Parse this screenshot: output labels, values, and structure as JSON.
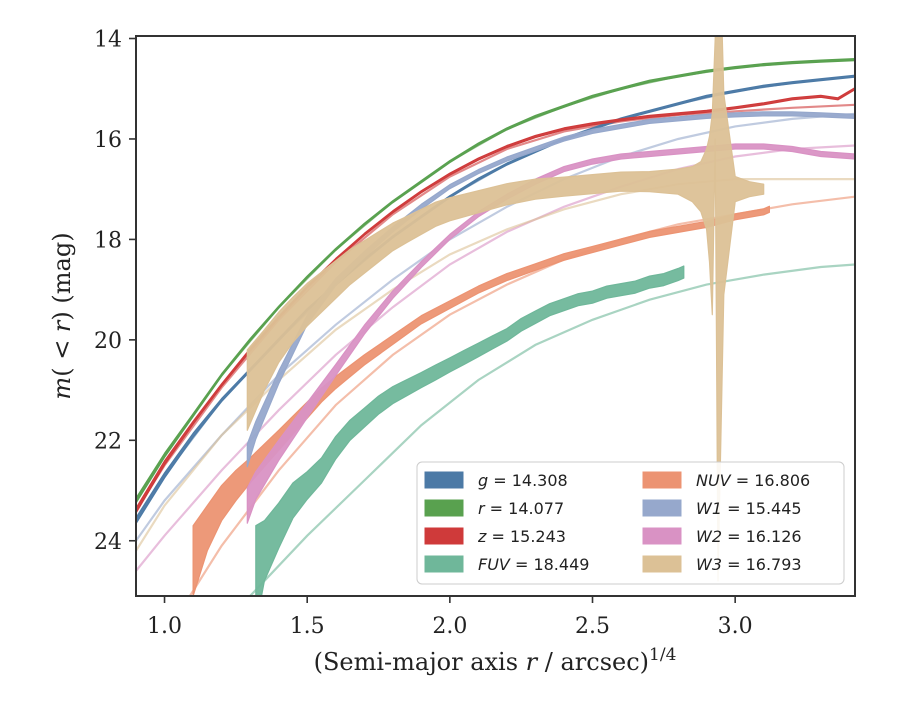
{
  "chart_data": {
    "type": "line",
    "xlabel": "(Semi-major axis r / arcsec)^{1/4}",
    "xlabel_parts": {
      "pre": "(Semi-major axis ",
      "var": "r",
      "post": " / arcsec)",
      "sup": "1/4"
    },
    "ylabel": "m(<r) (mag)",
    "ylabel_parts": {
      "m": "m",
      "mid": "( < ",
      "r": "r",
      "post": ") (mag)"
    },
    "xlim": [
      0.9,
      3.42
    ],
    "ylim": [
      25.1,
      13.95
    ],
    "y_inverted": true,
    "xticks": [
      1.0,
      1.5,
      2.0,
      2.5,
      3.0
    ],
    "xtick_labels": [
      "1.0",
      "1.5",
      "2.0",
      "2.5",
      "3.0"
    ],
    "yticks": [
      14,
      16,
      18,
      20,
      22,
      24
    ],
    "ytick_labels": [
      "14",
      "16",
      "18",
      "20",
      "22",
      "24"
    ],
    "grid": false,
    "legend_position": "lower-right",
    "series": [
      {
        "name": "g = 14.308",
        "sym": "g",
        "val": "= 14.308",
        "color": "#4c7aa6",
        "observed": {
          "x": [
            0.9,
            1.0,
            1.1,
            1.2,
            1.3,
            1.4,
            1.5,
            1.6,
            1.7,
            1.8,
            1.9,
            2.0,
            2.1,
            2.2,
            2.3,
            2.4,
            2.5,
            2.6,
            2.7,
            2.8,
            2.9,
            3.0,
            3.1,
            3.2,
            3.3,
            3.42
          ],
          "y": [
            23.6,
            22.7,
            21.9,
            21.2,
            20.6,
            20.0,
            19.4,
            18.9,
            18.4,
            17.95,
            17.55,
            17.15,
            16.8,
            16.5,
            16.25,
            16.0,
            15.8,
            15.6,
            15.45,
            15.3,
            15.15,
            15.05,
            14.95,
            14.88,
            14.82,
            14.75
          ],
          "width": [
            0.12,
            0.1,
            0.08,
            0.06,
            0.05,
            0.05,
            0.04,
            0.04,
            0.04,
            0.04,
            0.04,
            0.04,
            0.04,
            0.04,
            0.04,
            0.04,
            0.04,
            0.04,
            0.04,
            0.04,
            0.04,
            0.04,
            0.04,
            0.04,
            0.04,
            0.04
          ]
        },
        "model": {
          "x": [
            0.9,
            1.0,
            1.2,
            1.4,
            1.6,
            1.8,
            2.0,
            2.2,
            2.4,
            2.6,
            2.8,
            3.0,
            3.2,
            3.42
          ],
          "y": [
            23.6,
            22.7,
            21.2,
            20.0,
            18.9,
            17.95,
            17.15,
            16.5,
            16.0,
            15.6,
            15.3,
            15.05,
            14.88,
            14.75
          ]
        }
      },
      {
        "name": "r = 14.077",
        "sym": "r",
        "val": "= 14.077",
        "color": "#59a14f",
        "observed": {
          "x": [
            0.9,
            1.0,
            1.1,
            1.2,
            1.3,
            1.4,
            1.5,
            1.6,
            1.7,
            1.8,
            1.9,
            2.0,
            2.1,
            2.2,
            2.3,
            2.4,
            2.5,
            2.6,
            2.7,
            2.8,
            2.9,
            3.0,
            3.1,
            3.2,
            3.3,
            3.42
          ],
          "y": [
            23.2,
            22.3,
            21.5,
            20.7,
            20.0,
            19.35,
            18.75,
            18.2,
            17.7,
            17.25,
            16.85,
            16.45,
            16.1,
            15.8,
            15.55,
            15.35,
            15.15,
            15.0,
            14.85,
            14.75,
            14.65,
            14.58,
            14.52,
            14.48,
            14.45,
            14.42
          ],
          "width": [
            0.1,
            0.08,
            0.06,
            0.05,
            0.05,
            0.04,
            0.04,
            0.04,
            0.04,
            0.04,
            0.04,
            0.04,
            0.04,
            0.04,
            0.04,
            0.04,
            0.04,
            0.04,
            0.04,
            0.04,
            0.04,
            0.04,
            0.04,
            0.04,
            0.04,
            0.04
          ]
        },
        "model": {
          "x": [
            0.9,
            1.0,
            1.2,
            1.4,
            1.6,
            1.8,
            2.0,
            2.2,
            2.4,
            2.6,
            2.8,
            3.0,
            3.2,
            3.42
          ],
          "y": [
            23.2,
            22.3,
            20.7,
            19.35,
            18.2,
            17.25,
            16.45,
            15.8,
            15.35,
            15.0,
            14.75,
            14.58,
            14.48,
            14.42
          ]
        }
      },
      {
        "name": "z = 15.243",
        "sym": "z",
        "val": "= 15.243",
        "color": "#cf3a3a",
        "observed": {
          "x": [
            0.9,
            1.0,
            1.1,
            1.2,
            1.3,
            1.4,
            1.5,
            1.6,
            1.7,
            1.8,
            1.9,
            2.0,
            2.1,
            2.2,
            2.3,
            2.4,
            2.5,
            2.6,
            2.7,
            2.8,
            2.9,
            3.0,
            3.1,
            3.2,
            3.3,
            3.36,
            3.42
          ],
          "y": [
            23.4,
            22.45,
            21.65,
            20.9,
            20.2,
            19.55,
            18.95,
            18.4,
            17.9,
            17.45,
            17.05,
            16.7,
            16.4,
            16.15,
            15.95,
            15.8,
            15.7,
            15.62,
            15.55,
            15.5,
            15.45,
            15.38,
            15.3,
            15.2,
            15.15,
            15.2,
            15.0
          ],
          "width": [
            0.1,
            0.08,
            0.06,
            0.05,
            0.05,
            0.04,
            0.04,
            0.04,
            0.04,
            0.04,
            0.04,
            0.04,
            0.04,
            0.04,
            0.04,
            0.04,
            0.04,
            0.04,
            0.04,
            0.04,
            0.04,
            0.04,
            0.04,
            0.04,
            0.04,
            0.04,
            0.04
          ]
        },
        "model": {
          "x": [
            0.9,
            1.0,
            1.2,
            1.4,
            1.6,
            1.8,
            2.0,
            2.2,
            2.4,
            2.6,
            2.8,
            3.0,
            3.2,
            3.42
          ],
          "y": [
            23.4,
            22.5,
            20.95,
            19.6,
            18.45,
            17.5,
            16.75,
            16.2,
            15.85,
            15.65,
            15.52,
            15.45,
            15.38,
            15.32
          ]
        }
      },
      {
        "name": "FUV = 18.449",
        "sym": "FUV",
        "val": "= 18.449",
        "color": "#6fb79a",
        "observed": {
          "x": [
            1.32,
            1.35,
            1.4,
            1.45,
            1.5,
            1.55,
            1.6,
            1.65,
            1.7,
            1.75,
            1.8,
            1.85,
            1.9,
            1.95,
            2.0,
            2.05,
            2.1,
            2.15,
            2.2,
            2.25,
            2.3,
            2.35,
            2.4,
            2.45,
            2.5,
            2.55,
            2.6,
            2.65,
            2.7,
            2.75,
            2.8,
            2.82
          ],
          "y": [
            24.7,
            24.2,
            23.7,
            23.2,
            22.9,
            22.6,
            22.15,
            21.8,
            21.55,
            21.3,
            21.1,
            20.95,
            20.8,
            20.65,
            20.5,
            20.35,
            20.2,
            20.05,
            19.9,
            19.7,
            19.55,
            19.4,
            19.3,
            19.2,
            19.15,
            19.05,
            19.0,
            18.95,
            18.85,
            18.8,
            18.7,
            18.65
          ],
          "width": [
            2.0,
            1.2,
            0.9,
            0.7,
            0.55,
            0.5,
            0.45,
            0.4,
            0.38,
            0.36,
            0.34,
            0.32,
            0.3,
            0.3,
            0.28,
            0.28,
            0.27,
            0.26,
            0.25,
            0.25,
            0.25,
            0.24,
            0.24,
            0.24,
            0.24,
            0.24,
            0.24,
            0.24,
            0.24,
            0.24,
            0.24,
            0.24
          ]
        },
        "model": {
          "x": [
            1.1,
            1.3,
            1.5,
            1.7,
            1.9,
            2.1,
            2.3,
            2.5,
            2.7,
            2.9,
            3.1,
            3.3,
            3.42
          ],
          "y": [
            26.5,
            25.1,
            23.9,
            22.8,
            21.7,
            20.8,
            20.1,
            19.6,
            19.2,
            18.9,
            18.7,
            18.55,
            18.5
          ]
        }
      },
      {
        "name": "NUV = 16.806",
        "sym": "NUV",
        "val": "= 16.806",
        "color": "#ec9372",
        "observed": {
          "x": [
            1.1,
            1.15,
            1.2,
            1.25,
            1.3,
            1.35,
            1.4,
            1.45,
            1.5,
            1.55,
            1.6,
            1.7,
            1.8,
            1.9,
            2.0,
            2.1,
            2.2,
            2.3,
            2.4,
            2.5,
            2.6,
            2.7,
            2.8,
            2.9,
            3.0,
            3.1,
            3.12
          ],
          "y": [
            24.4,
            23.75,
            23.25,
            22.9,
            22.6,
            22.3,
            22.0,
            21.7,
            21.4,
            21.1,
            20.85,
            20.4,
            20.0,
            19.6,
            19.3,
            19.0,
            18.75,
            18.55,
            18.35,
            18.2,
            18.05,
            17.9,
            17.8,
            17.7,
            17.55,
            17.45,
            17.4
          ],
          "width": [
            1.4,
            0.9,
            0.7,
            0.6,
            0.5,
            0.45,
            0.4,
            0.36,
            0.32,
            0.28,
            0.24,
            0.2,
            0.18,
            0.16,
            0.15,
            0.14,
            0.14,
            0.13,
            0.13,
            0.12,
            0.12,
            0.12,
            0.12,
            0.12,
            0.12,
            0.12,
            0.12
          ]
        },
        "model": {
          "x": [
            1.0,
            1.2,
            1.4,
            1.6,
            1.8,
            2.0,
            2.2,
            2.4,
            2.6,
            2.8,
            3.0,
            3.2,
            3.42
          ],
          "y": [
            25.9,
            24.1,
            22.6,
            21.3,
            20.3,
            19.5,
            18.9,
            18.4,
            18.0,
            17.7,
            17.5,
            17.3,
            17.15
          ]
        }
      },
      {
        "name": "W1 = 15.445",
        "sym": "W1",
        "val": "= 15.445",
        "color": "#96a8cc",
        "observed": {
          "x": [
            1.29,
            1.32,
            1.4,
            1.5,
            1.6,
            1.7,
            1.8,
            1.9,
            2.0,
            2.1,
            2.2,
            2.3,
            2.4,
            2.5,
            2.6,
            2.7,
            2.8,
            2.9,
            3.0,
            3.1,
            3.2,
            3.3,
            3.42
          ],
          "y": [
            22.3,
            21.8,
            20.75,
            19.6,
            18.85,
            18.3,
            17.8,
            17.35,
            16.95,
            16.65,
            16.4,
            16.2,
            16.0,
            15.85,
            15.75,
            15.65,
            15.6,
            15.55,
            15.52,
            15.5,
            15.5,
            15.52,
            15.55
          ],
          "width": [
            0.45,
            0.35,
            0.25,
            0.18,
            0.14,
            0.12,
            0.1,
            0.1,
            0.08,
            0.08,
            0.08,
            0.08,
            0.08,
            0.08,
            0.08,
            0.08,
            0.08,
            0.08,
            0.08,
            0.08,
            0.08,
            0.08,
            0.08
          ]
        },
        "model": {
          "x": [
            0.9,
            1.0,
            1.2,
            1.4,
            1.6,
            1.8,
            2.0,
            2.2,
            2.4,
            2.6,
            2.8,
            3.0,
            3.2,
            3.42
          ],
          "y": [
            24.0,
            23.2,
            21.9,
            20.7,
            19.7,
            18.8,
            18.0,
            17.35,
            16.8,
            16.35,
            16.0,
            15.75,
            15.6,
            15.5
          ]
        }
      },
      {
        "name": "W2 = 16.126",
        "sym": "W2",
        "val": "= 16.126",
        "color": "#d992c4",
        "observed": {
          "x": [
            1.29,
            1.32,
            1.4,
            1.5,
            1.6,
            1.7,
            1.8,
            1.9,
            2.0,
            2.1,
            2.2,
            2.3,
            2.4,
            2.5,
            2.6,
            2.7,
            2.8,
            2.9,
            3.0,
            3.1,
            3.2,
            3.3,
            3.42
          ],
          "y": [
            23.3,
            22.9,
            22.2,
            21.4,
            20.6,
            19.8,
            19.1,
            18.5,
            17.95,
            17.5,
            17.15,
            16.85,
            16.6,
            16.45,
            16.35,
            16.3,
            16.25,
            16.2,
            16.15,
            16.15,
            16.2,
            16.3,
            16.35
          ],
          "width": [
            0.7,
            0.55,
            0.4,
            0.3,
            0.22,
            0.18,
            0.15,
            0.12,
            0.1,
            0.1,
            0.1,
            0.1,
            0.1,
            0.1,
            0.1,
            0.1,
            0.1,
            0.1,
            0.1,
            0.1,
            0.1,
            0.1,
            0.1
          ]
        },
        "model": {
          "x": [
            0.9,
            1.0,
            1.2,
            1.4,
            1.6,
            1.8,
            2.0,
            2.2,
            2.4,
            2.6,
            2.8,
            3.0,
            3.2,
            3.42
          ],
          "y": [
            24.6,
            23.9,
            22.6,
            21.4,
            20.3,
            19.35,
            18.5,
            17.85,
            17.35,
            16.95,
            16.6,
            16.35,
            16.2,
            16.13
          ]
        }
      },
      {
        "name": "W3 = 16.793",
        "sym": "W3",
        "val": "= 16.793",
        "color": "#dcc196",
        "observed": {
          "x": [
            1.29,
            1.35,
            1.4,
            1.45,
            1.5,
            1.55,
            1.6,
            1.65,
            1.7,
            1.75,
            1.8,
            1.85,
            1.9,
            1.95,
            2.0,
            2.1,
            2.2,
            2.3,
            2.4,
            2.5,
            2.6,
            2.7,
            2.8,
            2.85,
            2.88,
            2.9,
            2.91,
            2.92,
            2.93,
            2.94,
            2.96,
            3.0,
            3.05,
            3.1
          ],
          "y": [
            21.0,
            20.4,
            19.95,
            19.6,
            19.3,
            19.05,
            18.8,
            18.55,
            18.35,
            18.15,
            17.95,
            17.8,
            17.65,
            17.5,
            17.4,
            17.25,
            17.1,
            17.0,
            16.95,
            16.9,
            16.85,
            16.85,
            16.85,
            16.9,
            16.95,
            17.0,
            17.2,
            17.5,
            15.0,
            17.8,
            17.1,
            17.0,
            17.0,
            17.0
          ],
          "width": [
            1.6,
            1.2,
            1.0,
            0.9,
            0.85,
            0.8,
            0.75,
            0.7,
            0.65,
            0.6,
            0.55,
            0.52,
            0.5,
            0.48,
            0.46,
            0.44,
            0.42,
            0.4,
            0.38,
            0.38,
            0.38,
            0.4,
            0.5,
            0.7,
            1.0,
            1.6,
            2.5,
            4.0,
            2.0,
            14.0,
            4.0,
            0.5,
            0.3,
            0.2
          ]
        },
        "model": {
          "x": [
            0.9,
            1.0,
            1.2,
            1.4,
            1.6,
            1.8,
            2.0,
            2.2,
            2.4,
            2.6,
            2.8,
            3.0,
            3.2,
            3.42
          ],
          "y": [
            24.2,
            23.3,
            21.9,
            20.8,
            19.8,
            19.0,
            18.3,
            17.8,
            17.4,
            17.1,
            16.9,
            16.8,
            16.8,
            16.8
          ]
        }
      }
    ]
  }
}
